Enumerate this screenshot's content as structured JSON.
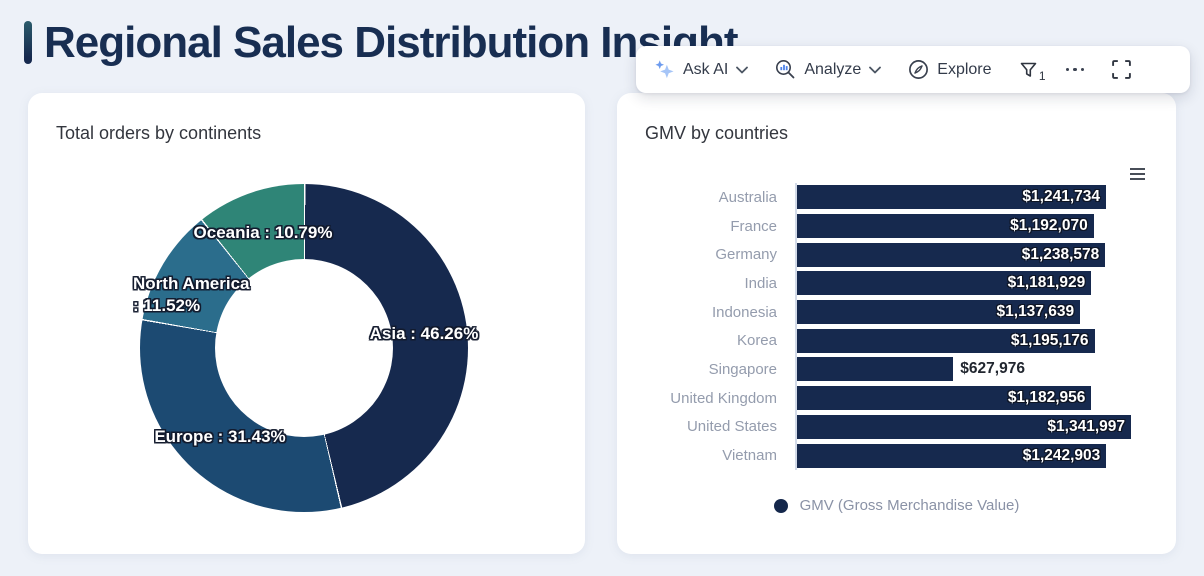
{
  "page": {
    "title": "Regional Sales Distribution Insight",
    "background_color": "#EDF1F8",
    "accent_color": "#16294E"
  },
  "toolbar": {
    "ask_ai_label": "Ask AI",
    "analyze_label": "Analyze",
    "explore_label": "Explore",
    "filter_badge": "1",
    "icons": {
      "ask_ai": "sparkle-icon",
      "ask_ai_caret": "chevron-down-icon",
      "analyze": "magnifier-chart-icon",
      "analyze_caret": "chevron-down-icon",
      "explore": "compass-leaf-icon",
      "filter": "filter-funnel-icon",
      "more": "ellipsis-icon",
      "fullscreen": "fullscreen-icon"
    }
  },
  "donut_card": {
    "title": "Total orders by continents"
  },
  "bar_card": {
    "title": "GMV by countries",
    "menu_icon": "hamburger-menu-icon",
    "legend_label": "GMV (Gross Merchandise Value)",
    "legend_dot_color": "#14274B"
  },
  "chart_data": [
    {
      "type": "pie",
      "donut": true,
      "title": "Total orders by continents",
      "labels": [
        "Asia",
        "Europe",
        "North America",
        "Oceania"
      ],
      "values": [
        46.26,
        31.43,
        11.52,
        10.79
      ],
      "unit": "%",
      "colors": [
        "#16294E",
        "#1C4A72",
        "#2B6D8C",
        "#2F8577"
      ],
      "display_labels": [
        "Asia : 46.26%",
        "Europe : 31.43%",
        "North America : 11.52%",
        "Oceania : 10.79%"
      ],
      "start_angle": "top",
      "direction": "clockwise"
    },
    {
      "type": "bar",
      "orientation": "horizontal",
      "title": "GMV by countries",
      "series_name": "GMV (Gross Merchandise Value)",
      "categories": [
        "Australia",
        "France",
        "Germany",
        "India",
        "Indonesia",
        "Korea",
        "Singapore",
        "United Kingdom",
        "United States",
        "Vietnam"
      ],
      "values": [
        1241734,
        1192070,
        1238578,
        1181929,
        1137639,
        1195176,
        627976,
        1182956,
        1341997,
        1242903
      ],
      "value_labels": [
        "$1,241,734",
        "$1,192,070",
        "$1,238,578",
        "$1,181,929",
        "$1,137,639",
        "$1,195,176",
        "$627,976",
        "$1,182,956",
        "$1,341,997",
        "$1,242,903"
      ],
      "bar_color": "#16294E",
      "xmax": 1341997,
      "grid": false,
      "axis_labels_hidden": true
    }
  ]
}
